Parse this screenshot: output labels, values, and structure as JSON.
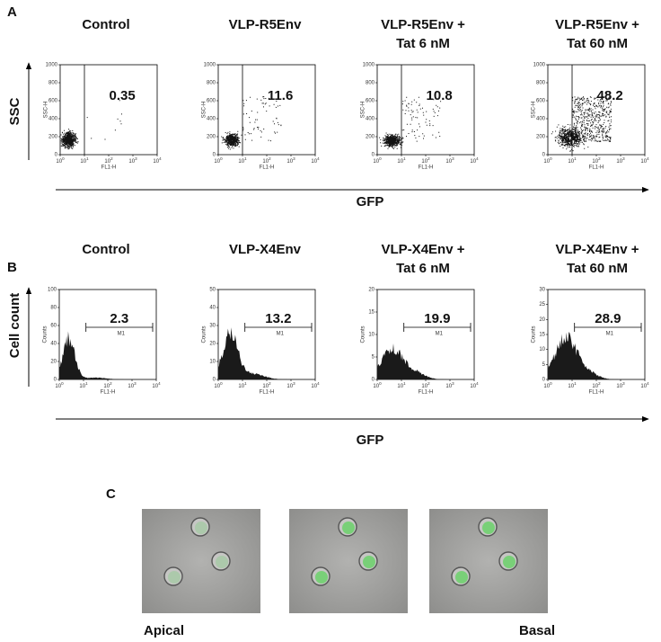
{
  "panel_a": {
    "label": "A",
    "axis_y": "SSC",
    "axis_x": "GFP",
    "plot_y_title": "SSC-H",
    "plot_x_title": "FL1-H",
    "plot_yticks": [
      0,
      200,
      400,
      600,
      800,
      1000
    ],
    "plot_x_tick_base": "10",
    "plot_x_tick_exps": [
      0,
      1,
      2,
      3,
      4
    ],
    "plots": [
      {
        "title": [
          "Control"
        ],
        "percent": 0.35
      },
      {
        "title": [
          "VLP-R5Env"
        ],
        "percent": 11.6
      },
      {
        "title": [
          "VLP-R5Env +",
          "Tat 6 nM"
        ],
        "percent": 10.8
      },
      {
        "title": [
          "VLP-R5Env +",
          "Tat 60 nM"
        ],
        "percent": 48.2
      }
    ]
  },
  "panel_b": {
    "label": "B",
    "axis_y": "Cell count",
    "axis_x": "GFP",
    "plot_y_title": "Counts",
    "plot_x_title": "FL1-H",
    "gate_label": "M1",
    "plot_x_tick_base": "10",
    "plot_x_tick_exps": [
      0,
      1,
      2,
      3,
      4
    ],
    "plots": [
      {
        "title": [
          "Control"
        ],
        "percent": 2.3,
        "yticks": [
          0,
          20,
          40,
          60,
          80,
          100
        ]
      },
      {
        "title": [
          "VLP-X4Env"
        ],
        "percent": 13.2,
        "yticks": [
          0,
          10,
          20,
          30,
          40,
          50
        ]
      },
      {
        "title": [
          "VLP-X4Env +",
          "Tat 6 nM"
        ],
        "percent": 19.9,
        "yticks": [
          0,
          5,
          10,
          15,
          20
        ]
      },
      {
        "title": [
          "VLP-X4Env +",
          "Tat 60 nM"
        ],
        "percent": 28.9,
        "yticks": [
          0,
          5,
          10,
          15,
          20,
          25,
          30
        ]
      }
    ]
  },
  "panel_c": {
    "label": "C",
    "captions": [
      "Apical",
      "Basal"
    ]
  }
}
